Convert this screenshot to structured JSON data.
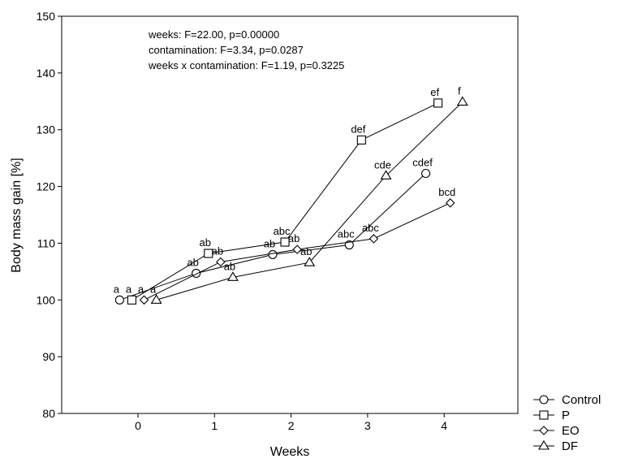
{
  "chart_data": {
    "type": "line",
    "xlabel": "Weeks",
    "ylabel": "Body mass gain [%]",
    "x_ticks": [
      "0",
      "1",
      "2",
      "3",
      "4"
    ],
    "y_ticks": [
      "80",
      "90",
      "100",
      "110",
      "120",
      "130",
      "140",
      "150"
    ],
    "xlim": [
      -1.05,
      5.0
    ],
    "ylim": [
      80,
      150
    ],
    "grid": false,
    "legend_position": "outside bottom-right",
    "stats": [
      "weeks: F=22.00, p=0.00000",
      "contamination: F=3.34, p=0.0287",
      "weeks x contamination: F=1.19, p=0.3225"
    ],
    "series": [
      {
        "name": "Control",
        "marker": "circle",
        "x": [
          -0.24,
          0.76,
          1.76,
          2.76,
          3.76
        ],
        "y": [
          100.0,
          104.7,
          108.0,
          109.7,
          122.3
        ],
        "labels": [
          "a",
          "ab",
          "ab",
          "abc",
          "cdef"
        ]
      },
      {
        "name": "P",
        "marker": "square",
        "x": [
          -0.08,
          0.92,
          1.92,
          2.92,
          3.92
        ],
        "y": [
          100.0,
          108.2,
          110.2,
          128.2,
          134.7
        ],
        "labels": [
          "a",
          "ab",
          "abc",
          "def",
          "ef"
        ]
      },
      {
        "name": "EO",
        "marker": "diamond",
        "x": [
          0.08,
          1.08,
          2.08,
          3.08,
          4.08
        ],
        "y": [
          100.0,
          106.7,
          108.9,
          110.8,
          117.1
        ],
        "labels": [
          "a",
          "ab",
          "ab",
          "abc",
          "bcd"
        ]
      },
      {
        "name": "DF",
        "marker": "triangle",
        "x": [
          0.24,
          1.24,
          2.24,
          3.24,
          4.24
        ],
        "y": [
          100.0,
          104.0,
          106.6,
          121.9,
          134.9
        ],
        "labels": [
          "a",
          "ab",
          "ab",
          "cde",
          "f"
        ]
      }
    ]
  }
}
